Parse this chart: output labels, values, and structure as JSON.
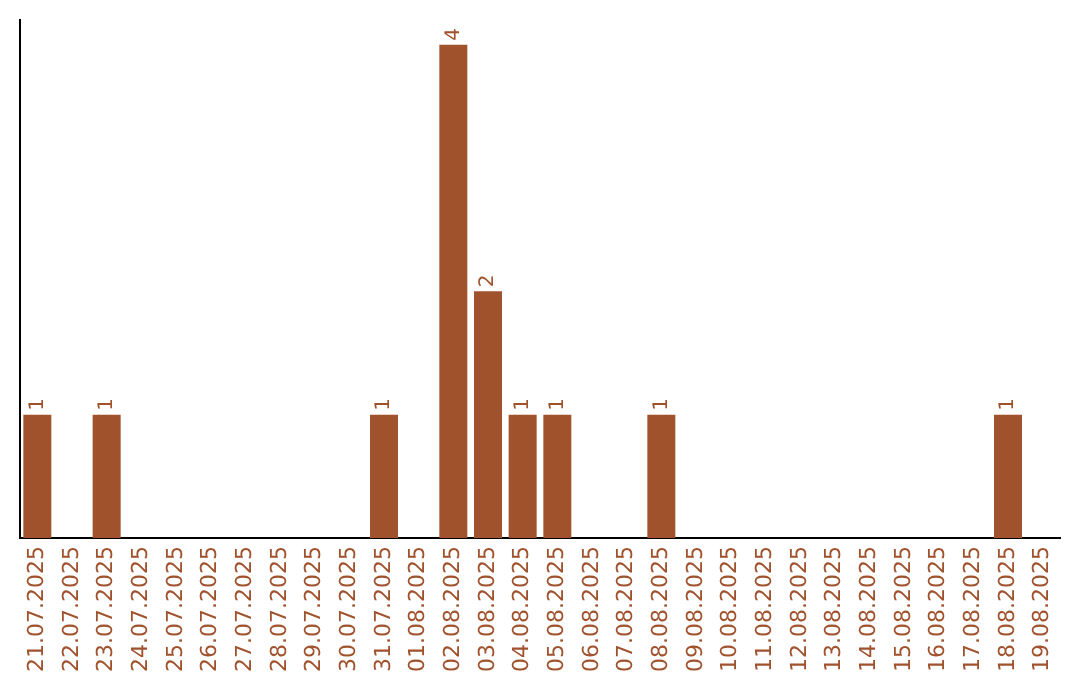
{
  "chart_data": {
    "type": "bar",
    "categories": [
      "21.07.2025",
      "22.07.2025",
      "23.07.2025",
      "24.07.2025",
      "25.07.2025",
      "26.07.2025",
      "27.07.2025",
      "28.07.2025",
      "29.07.2025",
      "30.07.2025",
      "31.07.2025",
      "01.08.2025",
      "02.08.2025",
      "03.08.2025",
      "04.08.2025",
      "05.08.2025",
      "06.08.2025",
      "07.08.2025",
      "08.08.2025",
      "09.08.2025",
      "10.08.2025",
      "11.08.2025",
      "12.08.2025",
      "13.08.2025",
      "14.08.2025",
      "15.08.2025",
      "16.08.2025",
      "17.08.2025",
      "18.08.2025",
      "19.08.2025"
    ],
    "values": [
      1,
      0,
      1,
      0,
      0,
      0,
      0,
      0,
      0,
      0,
      1,
      0,
      4,
      2,
      1,
      1,
      0,
      0,
      1,
      0,
      0,
      0,
      0,
      0,
      0,
      0,
      0,
      0,
      1,
      0
    ],
    "value_labels": [
      "1",
      null,
      "1",
      null,
      null,
      null,
      null,
      null,
      null,
      null,
      "1",
      null,
      "4",
      "2",
      "1",
      "1",
      null,
      null,
      "1",
      null,
      null,
      null,
      null,
      null,
      null,
      null,
      null,
      null,
      "1",
      null
    ],
    "color": "#a0522d",
    "ylim": [
      0,
      4.2
    ],
    "tick_labels": "x",
    "grid": false,
    "legend": false
  }
}
